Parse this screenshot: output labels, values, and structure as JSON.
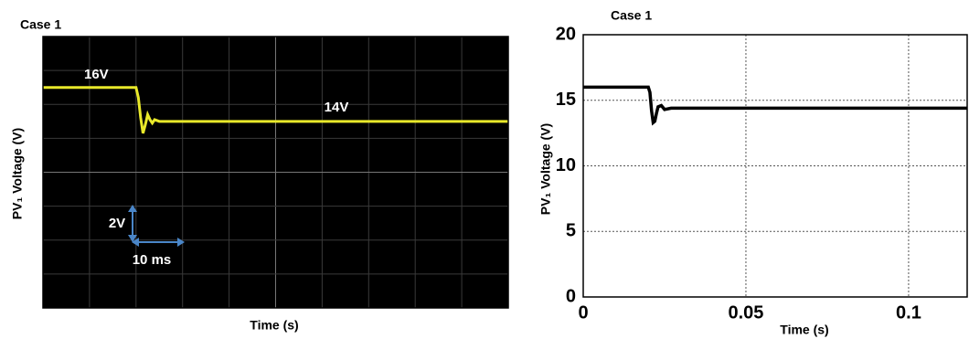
{
  "chart_data": [
    {
      "type": "line",
      "title": "Case 1",
      "xlabel": "Time (s)",
      "ylabel": "PV₁ Voltage (V)",
      "x": [
        0,
        20,
        20.5,
        21,
        21.5,
        22,
        22.5,
        23,
        23.5,
        24,
        25,
        100
      ],
      "values": [
        16,
        16,
        15.4,
        14.2,
        13.3,
        13.8,
        14.4,
        14.1,
        13.9,
        14.1,
        14,
        14
      ],
      "color": "#e8e82a",
      "xlim": [
        0,
        100
      ],
      "ylim": [
        3,
        19
      ],
      "annotations": [
        "16V",
        "14V",
        "2V",
        "10 ms"
      ]
    },
    {
      "type": "line",
      "title": "Case 1",
      "xlabel": "Time (s)",
      "ylabel": "PV₁ Voltage (V)",
      "x": [
        0,
        0.02,
        0.0205,
        0.021,
        0.0215,
        0.022,
        0.0225,
        0.023,
        0.024,
        0.025,
        0.027,
        0.118
      ],
      "values": [
        16,
        16,
        15.6,
        14.2,
        13.3,
        13.4,
        14.0,
        14.5,
        14.6,
        14.3,
        14.4,
        14.4
      ],
      "color": "#000000",
      "xlim": [
        0,
        0.118
      ],
      "ylim": [
        0,
        20
      ],
      "xticks": [
        0,
        0.05,
        0.1
      ],
      "yticks": [
        0,
        5,
        10,
        15,
        20
      ],
      "grid": true
    }
  ]
}
